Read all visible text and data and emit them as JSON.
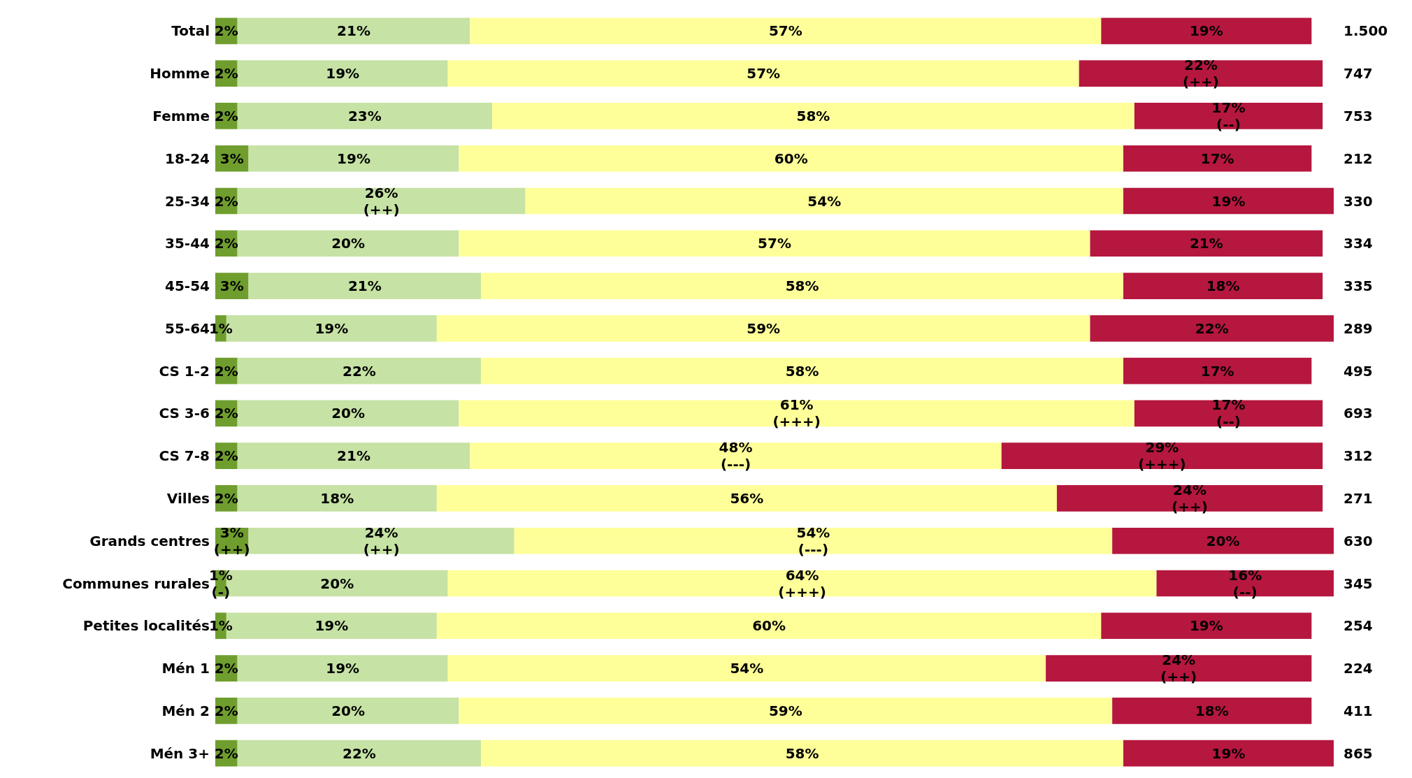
{
  "chart_data": {
    "type": "bar",
    "orientation": "horizontal",
    "stacked": true,
    "tick_labels": "y",
    "xlim": [
      0,
      101
    ],
    "categories": [
      "Total",
      "Homme",
      "Femme",
      "18-24",
      "25-34",
      "35-44",
      "45-54",
      "55-64",
      "CS 1-2",
      "CS 3-6",
      "CS 7-8",
      "Villes",
      "Grands centres",
      "Communes rurales",
      "Petites localités",
      "Mén 1",
      "Mén 2",
      "Mén 3+"
    ],
    "series": [
      {
        "color": "#6f9e2e",
        "values": [
          2,
          2,
          2,
          3,
          2,
          2,
          3,
          1,
          2,
          2,
          2,
          2,
          3,
          1,
          1,
          2,
          2,
          2
        ],
        "value_labels": [
          "2%",
          "2%",
          "2%",
          "3%",
          "2%",
          "2%",
          "3%",
          "1%",
          "2%",
          "2%",
          "2%",
          "2%",
          "3%\n(++)",
          "1%\n(-)",
          "1%",
          "2%",
          "2%",
          "2%"
        ]
      },
      {
        "color": "#c6e2a4",
        "values": [
          21,
          19,
          23,
          19,
          26,
          20,
          21,
          19,
          22,
          20,
          21,
          18,
          24,
          20,
          19,
          19,
          20,
          22
        ],
        "value_labels": [
          "21%",
          "19%",
          "23%",
          "19%",
          "26%\n(++)",
          "20%",
          "21%",
          "19%",
          "22%",
          "20%",
          "21%",
          "18%",
          "24%\n(++)",
          "20%",
          "19%",
          "19%",
          "20%",
          "22%"
        ]
      },
      {
        "color": "#ffff99",
        "values": [
          57,
          57,
          58,
          60,
          54,
          57,
          58,
          59,
          58,
          61,
          48,
          56,
          54,
          64,
          60,
          54,
          59,
          58
        ],
        "value_labels": [
          "57%",
          "57%",
          "58%",
          "60%",
          "54%",
          "57%",
          "58%",
          "59%",
          "58%",
          "61%\n(+++)",
          "48%\n(---)",
          "56%",
          "54%\n(---)",
          "64%\n(+++)",
          "60%",
          "54%",
          "59%",
          "58%"
        ]
      },
      {
        "color": "#b5173f",
        "values": [
          19,
          22,
          17,
          17,
          19,
          21,
          18,
          22,
          17,
          17,
          29,
          24,
          20,
          16,
          19,
          24,
          18,
          19
        ],
        "value_labels": [
          "19%",
          "22%\n(++)",
          "17%\n(--)",
          "17%",
          "19%",
          "21%",
          "18%",
          "22%",
          "17%",
          "17%\n(--)",
          "29%\n(+++)",
          "24%\n(++)",
          "20%",
          "16%\n(--)",
          "19%",
          "24%\n(++)",
          "18%",
          "19%"
        ]
      }
    ],
    "annotations": [
      "1.500",
      "747",
      "753",
      "212",
      "330",
      "334",
      "335",
      "289",
      "495",
      "693",
      "312",
      "271",
      "630",
      "345",
      "254",
      "224",
      "411",
      "865"
    ]
  }
}
